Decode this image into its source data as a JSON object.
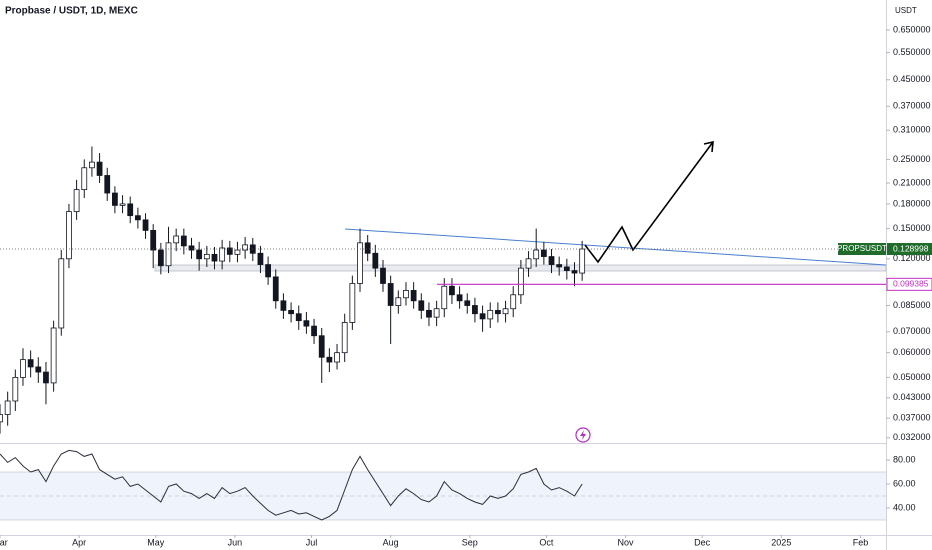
{
  "chart_data": [
    {
      "type": "candlestick",
      "title": "Propbase / USDT, 1D, MEXC",
      "currency": "USDT",
      "log_scale": true,
      "grid": false,
      "up_color": "#ffffff",
      "down_color": "#131722",
      "border_color": "#131722",
      "x": [
        0,
        3,
        6,
        9,
        12,
        15,
        18,
        21,
        24,
        27,
        30,
        33,
        36,
        39,
        42,
        45,
        48,
        51,
        54,
        57,
        60,
        63,
        66,
        69,
        72,
        75,
        78,
        81,
        84,
        87,
        90,
        93,
        96,
        99,
        102,
        105,
        108,
        111,
        114,
        117,
        120,
        123,
        126,
        129,
        132,
        135,
        138,
        141,
        144,
        147,
        150,
        153,
        156,
        159,
        162,
        165,
        168,
        171,
        174,
        177,
        180,
        183,
        186,
        189,
        192,
        195,
        198,
        201,
        204,
        207,
        210,
        213,
        216,
        219,
        222,
        225,
        228
      ],
      "open": [
        0.036,
        0.038,
        0.042,
        0.05,
        0.057,
        0.054,
        0.052,
        0.048,
        0.072,
        0.12,
        0.17,
        0.2,
        0.235,
        0.245,
        0.222,
        0.195,
        0.178,
        0.18,
        0.165,
        0.16,
        0.148,
        0.128,
        0.114,
        0.135,
        0.142,
        0.132,
        0.128,
        0.12,
        0.124,
        0.118,
        0.13,
        0.124,
        0.128,
        0.133,
        0.125,
        0.115,
        0.105,
        0.088,
        0.082,
        0.08,
        0.076,
        0.073,
        0.068,
        0.058,
        0.056,
        0.06,
        0.075,
        0.1,
        0.135,
        0.125,
        0.112,
        0.1,
        0.085,
        0.09,
        0.095,
        0.088,
        0.082,
        0.078,
        0.083,
        0.098,
        0.092,
        0.088,
        0.085,
        0.08,
        0.077,
        0.082,
        0.08,
        0.083,
        0.092,
        0.112,
        0.12,
        0.128,
        0.122,
        0.115,
        0.113,
        0.11,
        0.108
      ],
      "high": [
        0.041,
        0.045,
        0.053,
        0.062,
        0.061,
        0.058,
        0.056,
        0.076,
        0.128,
        0.18,
        0.215,
        0.25,
        0.275,
        0.262,
        0.235,
        0.205,
        0.192,
        0.19,
        0.175,
        0.168,
        0.155,
        0.135,
        0.152,
        0.15,
        0.15,
        0.14,
        0.136,
        0.132,
        0.131,
        0.138,
        0.137,
        0.136,
        0.141,
        0.14,
        0.132,
        0.122,
        0.111,
        0.093,
        0.087,
        0.085,
        0.081,
        0.077,
        0.072,
        0.062,
        0.064,
        0.08,
        0.106,
        0.15,
        0.143,
        0.133,
        0.119,
        0.106,
        0.095,
        0.101,
        0.101,
        0.093,
        0.087,
        0.088,
        0.104,
        0.104,
        0.098,
        0.093,
        0.09,
        0.085,
        0.087,
        0.087,
        0.088,
        0.098,
        0.119,
        0.127,
        0.15,
        0.136,
        0.129,
        0.122,
        0.12,
        0.117,
        0.137
      ],
      "low": [
        0.033,
        0.035,
        0.039,
        0.047,
        0.05,
        0.048,
        0.041,
        0.045,
        0.068,
        0.112,
        0.16,
        0.188,
        0.22,
        0.21,
        0.184,
        0.168,
        0.168,
        0.156,
        0.15,
        0.139,
        0.112,
        0.107,
        0.108,
        0.127,
        0.124,
        0.12,
        0.11,
        0.113,
        0.111,
        0.111,
        0.117,
        0.117,
        0.12,
        0.118,
        0.108,
        0.099,
        0.083,
        0.077,
        0.075,
        0.071,
        0.069,
        0.064,
        0.048,
        0.052,
        0.053,
        0.056,
        0.071,
        0.094,
        0.118,
        0.105,
        0.094,
        0.064,
        0.08,
        0.085,
        0.083,
        0.077,
        0.073,
        0.073,
        0.078,
        0.086,
        0.083,
        0.08,
        0.075,
        0.07,
        0.072,
        0.075,
        0.075,
        0.078,
        0.086,
        0.105,
        0.113,
        0.115,
        0.108,
        0.106,
        0.103,
        0.098,
        0.102
      ],
      "close": [
        0.038,
        0.042,
        0.05,
        0.057,
        0.054,
        0.052,
        0.048,
        0.072,
        0.12,
        0.17,
        0.2,
        0.235,
        0.245,
        0.222,
        0.195,
        0.178,
        0.18,
        0.165,
        0.16,
        0.148,
        0.128,
        0.114,
        0.135,
        0.142,
        0.132,
        0.128,
        0.12,
        0.124,
        0.118,
        0.13,
        0.124,
        0.128,
        0.133,
        0.125,
        0.115,
        0.105,
        0.088,
        0.082,
        0.08,
        0.076,
        0.073,
        0.068,
        0.058,
        0.056,
        0.06,
        0.075,
        0.1,
        0.135,
        0.125,
        0.112,
        0.1,
        0.085,
        0.09,
        0.095,
        0.088,
        0.082,
        0.078,
        0.083,
        0.098,
        0.092,
        0.088,
        0.085,
        0.08,
        0.077,
        0.082,
        0.08,
        0.083,
        0.092,
        0.112,
        0.12,
        0.128,
        0.122,
        0.115,
        0.113,
        0.11,
        0.108,
        0.129
      ],
      "xlim": [
        0,
        347
      ],
      "xticks": [
        {
          "value": 0,
          "label": "Mar"
        },
        {
          "value": 31,
          "label": "Apr"
        },
        {
          "value": 61,
          "label": "May"
        },
        {
          "value": 92,
          "label": "Jun"
        },
        {
          "value": 122,
          "label": "Jul"
        },
        {
          "value": 153,
          "label": "Aug"
        },
        {
          "value": 184,
          "label": "Sep"
        },
        {
          "value": 214,
          "label": "Oct"
        },
        {
          "value": 245,
          "label": "Nov"
        },
        {
          "value": 275,
          "label": "Dec"
        },
        {
          "value": 306,
          "label": "2025"
        },
        {
          "value": 337,
          "label": "Feb"
        }
      ],
      "ylim": [
        0.0308,
        0.811
      ],
      "yticks": [
        {
          "value": 0.65,
          "label": "0.650000"
        },
        {
          "value": 0.55,
          "label": "0.550000"
        },
        {
          "value": 0.45,
          "label": "0.450000"
        },
        {
          "value": 0.37,
          "label": "0.370000"
        },
        {
          "value": 0.31,
          "label": "0.310000"
        },
        {
          "value": 0.25,
          "label": "0.250000"
        },
        {
          "value": 0.21,
          "label": "0.210000"
        },
        {
          "value": 0.18,
          "label": "0.180000"
        },
        {
          "value": 0.15,
          "label": "0.150000"
        },
        {
          "value": 0.12,
          "label": "0.120000"
        },
        {
          "value": 0.085,
          "label": "0.085000"
        },
        {
          "value": 0.07,
          "label": "0.070000"
        },
        {
          "value": 0.06,
          "label": "0.060000"
        },
        {
          "value": 0.05,
          "label": "0.050000"
        },
        {
          "value": 0.043,
          "label": "0.043000"
        },
        {
          "value": 0.037,
          "label": "0.037000"
        },
        {
          "value": 0.032,
          "label": "0.032000"
        }
      ],
      "last_price": {
        "symbol": "PROPSUSDT",
        "value": 0.128998,
        "color": "#1f6b2a"
      },
      "level": {
        "value": 0.099385,
        "color": "#c42cc4"
      }
    },
    {
      "type": "line",
      "color": "#2a2e39",
      "band_color": "#eef3fc",
      "x": [
        0,
        3,
        6,
        9,
        12,
        15,
        18,
        21,
        24,
        27,
        30,
        33,
        36,
        39,
        42,
        45,
        48,
        51,
        54,
        57,
        60,
        63,
        66,
        69,
        72,
        75,
        78,
        81,
        84,
        87,
        90,
        93,
        96,
        99,
        102,
        105,
        108,
        111,
        114,
        117,
        120,
        123,
        126,
        129,
        132,
        135,
        138,
        141,
        144,
        147,
        150,
        153,
        156,
        159,
        162,
        165,
        168,
        171,
        174,
        177,
        180,
        183,
        186,
        189,
        192,
        195,
        198,
        201,
        204,
        207,
        210,
        213,
        216,
        219,
        222,
        225,
        228
      ],
      "values": [
        85,
        78,
        82,
        75,
        70,
        72,
        62,
        75,
        85,
        88,
        87,
        83,
        85,
        72,
        68,
        64,
        66,
        58,
        60,
        55,
        50,
        45,
        58,
        60,
        54,
        52,
        48,
        52,
        48,
        57,
        52,
        54,
        57,
        50,
        44,
        38,
        34,
        36,
        38,
        35,
        36,
        33,
        30,
        33,
        38,
        55,
        72,
        83,
        72,
        62,
        52,
        42,
        50,
        56,
        52,
        47,
        45,
        50,
        62,
        55,
        52,
        48,
        45,
        43,
        50,
        48,
        50,
        56,
        68,
        70,
        73,
        60,
        55,
        57,
        54,
        50,
        60
      ],
      "band": [
        30,
        70
      ],
      "midline": 50,
      "ylim": [
        17.5,
        92.5
      ],
      "yticks": [
        {
          "value": 80,
          "label": "80.00"
        },
        {
          "value": 60,
          "label": "60.00"
        },
        {
          "value": 40,
          "label": "40.00"
        }
      ]
    }
  ]
}
